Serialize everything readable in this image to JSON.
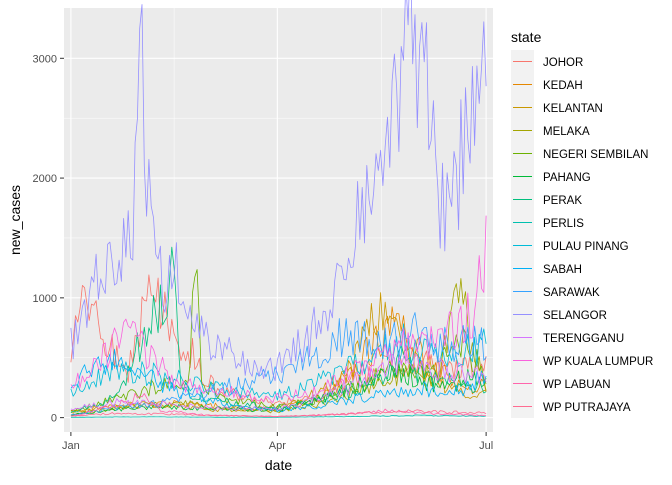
{
  "chart_data": {
    "type": "line",
    "xlabel": "date",
    "ylabel": "new_cases",
    "x_ticks": [
      {
        "label": "Jan",
        "date": "2021-01-01"
      },
      {
        "label": "Apr",
        "date": "2021-04-01"
      },
      {
        "label": "Jul",
        "date": "2021-07-01"
      }
    ],
    "y_ticks": [
      0,
      1000,
      2000,
      3000
    ],
    "xlim": [
      "2020-12-29",
      "2021-07-04"
    ],
    "ylim": [
      -120,
      3420
    ],
    "grid": true,
    "legend_position": "right",
    "legend_title": "state",
    "colors": {
      "panel_background": "#ebebeb",
      "gridline": "#ffffff"
    },
    "series": [
      {
        "name": "JOHOR",
        "color": "#F8766D",
        "anchors": [
          [
            "2021-01-01",
            560
          ],
          [
            "2021-01-08",
            1000
          ],
          [
            "2021-01-15",
            700
          ],
          [
            "2021-01-25",
            320
          ],
          [
            "2021-02-01",
            880
          ],
          [
            "2021-02-08",
            1060
          ],
          [
            "2021-02-15",
            600
          ],
          [
            "2021-02-22",
            560
          ],
          [
            "2021-03-01",
            300
          ],
          [
            "2021-03-15",
            180
          ],
          [
            "2021-04-01",
            120
          ],
          [
            "2021-04-15",
            150
          ],
          [
            "2021-05-01",
            300
          ],
          [
            "2021-05-15",
            420
          ],
          [
            "2021-06-01",
            480
          ],
          [
            "2021-06-15",
            400
          ],
          [
            "2021-07-01",
            430
          ]
        ]
      },
      {
        "name": "KEDAH",
        "color": "#E58700",
        "anchors": [
          [
            "2021-01-01",
            60
          ],
          [
            "2021-01-20",
            90
          ],
          [
            "2021-02-10",
            120
          ],
          [
            "2021-03-01",
            100
          ],
          [
            "2021-04-01",
            70
          ],
          [
            "2021-04-20",
            150
          ],
          [
            "2021-05-01",
            330
          ],
          [
            "2021-05-15",
            650
          ],
          [
            "2021-05-25",
            780
          ],
          [
            "2021-06-05",
            450
          ],
          [
            "2021-06-20",
            280
          ],
          [
            "2021-07-01",
            250
          ]
        ]
      },
      {
        "name": "KELANTAN",
        "color": "#C99800",
        "anchors": [
          [
            "2021-01-01",
            40
          ],
          [
            "2021-01-20",
            100
          ],
          [
            "2021-02-10",
            110
          ],
          [
            "2021-03-01",
            60
          ],
          [
            "2021-04-01",
            80
          ],
          [
            "2021-04-20",
            220
          ],
          [
            "2021-05-01",
            350
          ],
          [
            "2021-05-15",
            880
          ],
          [
            "2021-05-25",
            600
          ],
          [
            "2021-06-05",
            330
          ],
          [
            "2021-06-20",
            210
          ],
          [
            "2021-07-01",
            200
          ]
        ]
      },
      {
        "name": "MELAKA",
        "color": "#A3A500",
        "anchors": [
          [
            "2021-01-01",
            30
          ],
          [
            "2021-01-20",
            80
          ],
          [
            "2021-02-05",
            110
          ],
          [
            "2021-02-20",
            120
          ],
          [
            "2021-03-01",
            90
          ],
          [
            "2021-04-01",
            50
          ],
          [
            "2021-04-20",
            120
          ],
          [
            "2021-05-10",
            240
          ],
          [
            "2021-05-25",
            380
          ],
          [
            "2021-06-10",
            310
          ],
          [
            "2021-06-20",
            1080
          ],
          [
            "2021-06-25",
            520
          ],
          [
            "2021-07-01",
            300
          ]
        ]
      },
      {
        "name": "NEGERI SEMBILAN",
        "color": "#6BB100",
        "anchors": [
          [
            "2021-01-01",
            50
          ],
          [
            "2021-01-20",
            150
          ],
          [
            "2021-02-10",
            280
          ],
          [
            "2021-02-21",
            260
          ],
          [
            "2021-02-24",
            1380
          ],
          [
            "2021-02-27",
            300
          ],
          [
            "2021-03-10",
            150
          ],
          [
            "2021-04-01",
            90
          ],
          [
            "2021-04-20",
            160
          ],
          [
            "2021-05-10",
            280
          ],
          [
            "2021-05-25",
            480
          ],
          [
            "2021-06-10",
            380
          ],
          [
            "2021-06-20",
            680
          ],
          [
            "2021-07-01",
            330
          ]
        ]
      },
      {
        "name": "PAHANG",
        "color": "#00BA38",
        "anchors": [
          [
            "2021-01-01",
            20
          ],
          [
            "2021-01-20",
            70
          ],
          [
            "2021-02-10",
            90
          ],
          [
            "2021-03-01",
            80
          ],
          [
            "2021-04-01",
            60
          ],
          [
            "2021-04-20",
            150
          ],
          [
            "2021-05-10",
            300
          ],
          [
            "2021-05-25",
            380
          ],
          [
            "2021-06-10",
            250
          ],
          [
            "2021-06-20",
            320
          ],
          [
            "2021-07-01",
            340
          ]
        ]
      },
      {
        "name": "PERAK",
        "color": "#00BF7D",
        "anchors": [
          [
            "2021-01-01",
            40
          ],
          [
            "2021-01-20",
            160
          ],
          [
            "2021-02-15",
            1200
          ],
          [
            "2021-02-18",
            250
          ],
          [
            "2021-03-01",
            150
          ],
          [
            "2021-04-01",
            80
          ],
          [
            "2021-04-20",
            150
          ],
          [
            "2021-05-10",
            260
          ],
          [
            "2021-05-25",
            470
          ],
          [
            "2021-06-10",
            300
          ],
          [
            "2021-07-01",
            280
          ]
        ]
      },
      {
        "name": "PERLIS",
        "color": "#00C0AF",
        "anchors": [
          [
            "2021-01-01",
            3
          ],
          [
            "2021-02-01",
            6
          ],
          [
            "2021-03-01",
            4
          ],
          [
            "2021-04-01",
            3
          ],
          [
            "2021-05-01",
            8
          ],
          [
            "2021-06-01",
            18
          ],
          [
            "2021-07-01",
            12
          ]
        ]
      },
      {
        "name": "PULAU PINANG",
        "color": "#00BCD8",
        "anchors": [
          [
            "2021-01-01",
            200
          ],
          [
            "2021-01-20",
            400
          ],
          [
            "2021-02-10",
            350
          ],
          [
            "2021-03-01",
            250
          ],
          [
            "2021-03-20",
            200
          ],
          [
            "2021-04-01",
            180
          ],
          [
            "2021-04-20",
            300
          ],
          [
            "2021-05-10",
            480
          ],
          [
            "2021-05-25",
            620
          ],
          [
            "2021-06-10",
            550
          ],
          [
            "2021-07-01",
            600
          ]
        ]
      },
      {
        "name": "SABAH",
        "color": "#00B0F6",
        "anchors": [
          [
            "2021-01-01",
            300
          ],
          [
            "2021-01-20",
            500
          ],
          [
            "2021-02-10",
            260
          ],
          [
            "2021-03-01",
            150
          ],
          [
            "2021-03-15",
            100
          ],
          [
            "2021-04-01",
            60
          ],
          [
            "2021-04-20",
            100
          ],
          [
            "2021-05-10",
            180
          ],
          [
            "2021-06-01",
            240
          ],
          [
            "2021-06-20",
            220
          ],
          [
            "2021-07-01",
            380
          ]
        ]
      },
      {
        "name": "SARAWAK",
        "color": "#35A2FF",
        "anchors": [
          [
            "2021-01-01",
            20
          ],
          [
            "2021-01-20",
            80
          ],
          [
            "2021-02-10",
            120
          ],
          [
            "2021-03-01",
            220
          ],
          [
            "2021-03-20",
            300
          ],
          [
            "2021-04-01",
            380
          ],
          [
            "2021-04-15",
            480
          ],
          [
            "2021-04-20",
            560
          ],
          [
            "2021-05-01",
            700
          ],
          [
            "2021-05-15",
            600
          ],
          [
            "2021-06-01",
            700
          ],
          [
            "2021-06-15",
            580
          ],
          [
            "2021-07-01",
            650
          ]
        ]
      },
      {
        "name": "SELANGOR",
        "color": "#9590FF",
        "anchors": [
          [
            "2021-01-01",
            620
          ],
          [
            "2021-01-07",
            780
          ],
          [
            "2021-01-14",
            1400
          ],
          [
            "2021-01-21",
            1200
          ],
          [
            "2021-01-28",
            1700
          ],
          [
            "2021-01-31",
            3280
          ],
          [
            "2021-02-05",
            1450
          ],
          [
            "2021-02-10",
            1050
          ],
          [
            "2021-02-15",
            1300
          ],
          [
            "2021-02-20",
            980
          ],
          [
            "2021-02-25",
            790
          ],
          [
            "2021-03-05",
            600
          ],
          [
            "2021-03-15",
            500
          ],
          [
            "2021-03-25",
            430
          ],
          [
            "2021-04-01",
            420
          ],
          [
            "2021-04-10",
            580
          ],
          [
            "2021-04-20",
            800
          ],
          [
            "2021-04-30",
            1350
          ],
          [
            "2021-05-10",
            1700
          ],
          [
            "2021-05-20",
            2200
          ],
          [
            "2021-05-25",
            2900
          ],
          [
            "2021-05-31",
            3140
          ],
          [
            "2021-06-05",
            2700
          ],
          [
            "2021-06-10",
            2000
          ],
          [
            "2021-06-15",
            1550
          ],
          [
            "2021-06-20",
            2100
          ],
          [
            "2021-06-25",
            2300
          ],
          [
            "2021-07-01",
            2850
          ]
        ]
      },
      {
        "name": "TERENGGANU",
        "color": "#D575FE",
        "anchors": [
          [
            "2021-01-01",
            70
          ],
          [
            "2021-01-20",
            130
          ],
          [
            "2021-02-10",
            110
          ],
          [
            "2021-03-01",
            80
          ],
          [
            "2021-04-01",
            70
          ],
          [
            "2021-04-20",
            170
          ],
          [
            "2021-05-10",
            330
          ],
          [
            "2021-05-25",
            490
          ],
          [
            "2021-06-10",
            420
          ],
          [
            "2021-07-01",
            350
          ]
        ]
      },
      {
        "name": "WP KUALA LUMPUR",
        "color": "#F962DD",
        "anchors": [
          [
            "2021-01-01",
            250
          ],
          [
            "2021-01-15",
            480
          ],
          [
            "2021-01-25",
            700
          ],
          [
            "2021-02-05",
            500
          ],
          [
            "2021-02-15",
            300
          ],
          [
            "2021-03-01",
            230
          ],
          [
            "2021-03-15",
            200
          ],
          [
            "2021-04-01",
            160
          ],
          [
            "2021-04-20",
            230
          ],
          [
            "2021-05-10",
            430
          ],
          [
            "2021-05-25",
            580
          ],
          [
            "2021-06-10",
            660
          ],
          [
            "2021-06-25",
            870
          ],
          [
            "2021-07-01",
            1370
          ]
        ]
      },
      {
        "name": "WP LABUAN",
        "color": "#FF65AC",
        "anchors": [
          [
            "2021-01-01",
            10
          ],
          [
            "2021-01-20",
            90
          ],
          [
            "2021-02-01",
            190
          ],
          [
            "2021-02-10",
            60
          ],
          [
            "2021-03-01",
            20
          ],
          [
            "2021-04-01",
            10
          ],
          [
            "2021-05-01",
            30
          ],
          [
            "2021-05-20",
            60
          ],
          [
            "2021-06-10",
            30
          ],
          [
            "2021-07-01",
            20
          ]
        ]
      },
      {
        "name": "WP PUTRAJAYA",
        "color": "#FF6C91",
        "anchors": [
          [
            "2021-01-01",
            15
          ],
          [
            "2021-01-20",
            35
          ],
          [
            "2021-02-10",
            30
          ],
          [
            "2021-03-01",
            20
          ],
          [
            "2021-04-01",
            10
          ],
          [
            "2021-05-01",
            30
          ],
          [
            "2021-05-25",
            55
          ],
          [
            "2021-06-15",
            45
          ],
          [
            "2021-07-01",
            40
          ]
        ]
      }
    ]
  }
}
